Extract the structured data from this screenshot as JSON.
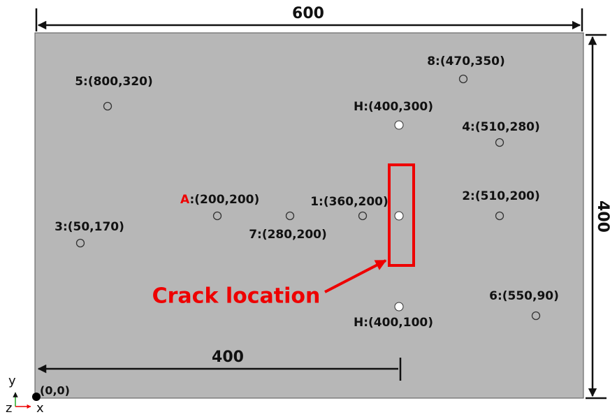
{
  "dimensions": {
    "width": "600",
    "height": "400",
    "offset": "400"
  },
  "points": [
    {
      "label": "5:(800,320)"
    },
    {
      "label": "8:(470,350)"
    },
    {
      "label": "H:(400,300)"
    },
    {
      "label": "4:(510,280)"
    },
    {
      "label": "1:(360,200)"
    },
    {
      "label": "2:(510,200)"
    },
    {
      "label": "7:(280,200)"
    },
    {
      "label": "3:(50,170)"
    },
    {
      "label": "H:(400,100)"
    },
    {
      "label": "6:(550,90)"
    }
  ],
  "point_A": {
    "letter": "A",
    "coords": ":(200,200)"
  },
  "crack_label": "Crack location",
  "origin": "(0,0)",
  "axes": {
    "y": "y",
    "z": "z",
    "x": "x"
  }
}
